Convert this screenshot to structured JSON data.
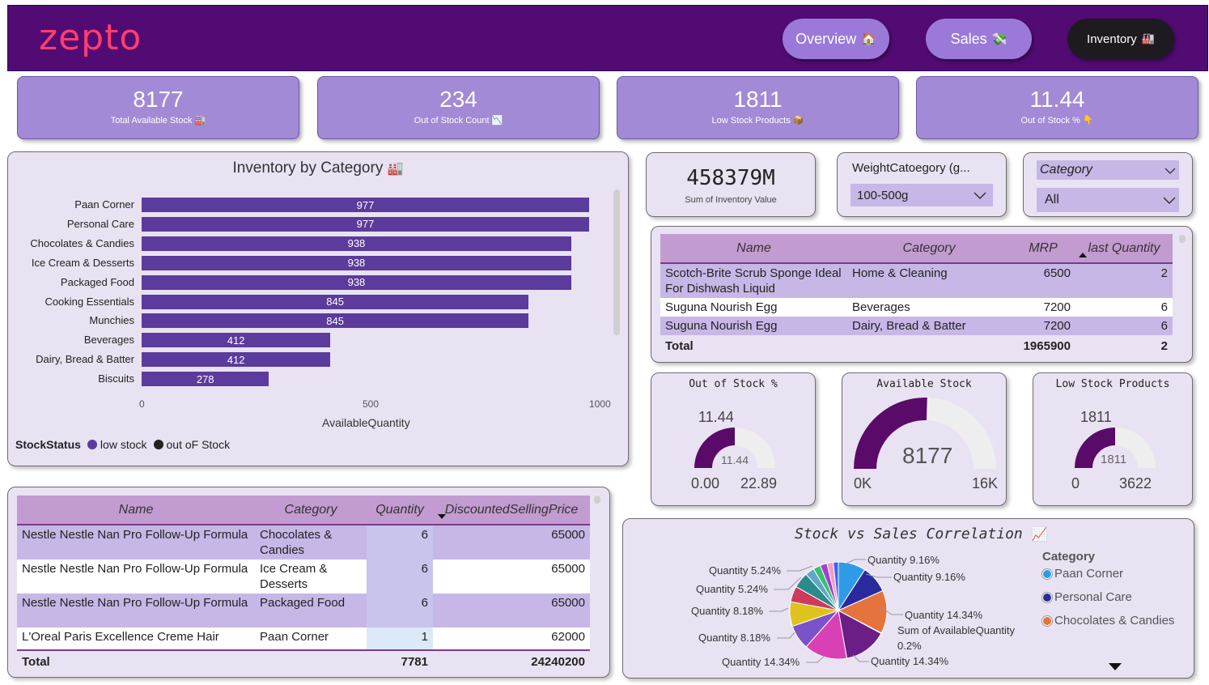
{
  "brand": "zepto",
  "nav": [
    {
      "label": "Overview",
      "icon": "🏠"
    },
    {
      "label": "Sales",
      "icon": "💸"
    },
    {
      "label": "Inventory",
      "icon": "🏭"
    }
  ],
  "kpis": [
    {
      "value": "8177",
      "label": "Total Available Stock",
      "icon": "🏭"
    },
    {
      "value": "234",
      "label": "Out of Stock Count",
      "icon": "📉"
    },
    {
      "value": "1811",
      "label": "Low Stock Products",
      "icon": "📦"
    },
    {
      "value": "11.44",
      "label": "Out of Stock %",
      "icon": "👇"
    }
  ],
  "inventory_chart": {
    "title": "Inventory by Category",
    "title_icon": "🏭",
    "xlabel": "AvailableQuantity",
    "legend_title": "StockStatus",
    "legend": [
      "low stock",
      "out oF Stock"
    ],
    "ticks": [
      "0",
      "500",
      "1000"
    ]
  },
  "chart_data": [
    {
      "type": "bar",
      "title": "Inventory by Category",
      "categories": [
        "Paan Corner",
        "Personal Care",
        "Chocolates & Candies",
        "Ice Cream & Desserts",
        "Packaged Food",
        "Cooking Essentials",
        "Munchies",
        "Beverages",
        "Dairy, Bread & Batter",
        "Biscuits"
      ],
      "values": [
        977,
        977,
        938,
        938,
        938,
        845,
        845,
        412,
        412,
        278
      ],
      "xlabel": "AvailableQuantity",
      "xlim": [
        0,
        1000
      ],
      "orientation": "horizontal",
      "colors": {
        "low stock": "#5b3b9b",
        "out oF Stock": "#222222"
      }
    },
    {
      "type": "pie",
      "title": "Stock vs Sales Correlation",
      "values": [
        9.16,
        9.16,
        14.34,
        0.2,
        14.34,
        14.34,
        8.18,
        8.18,
        5.24,
        5.24,
        3.0,
        2.5,
        2.3,
        2.1,
        1.7
      ],
      "labels": [
        "Quantity 9.16%",
        "Quantity 9.16%",
        "Quantity 14.34%",
        "Sum of AvailableQuantity 0.2%",
        "Quantity 14.34%",
        "Quantity 14.34%",
        "Quantity 8.18%",
        "Quantity 8.18%",
        "Quantity 5.24%",
        "Quantity 5.24%",
        "",
        "",
        "",
        "",
        ""
      ],
      "colors": [
        "#2f9be8",
        "#2a2a9e",
        "#e5733d",
        "#6b1f86",
        "#6b1f86",
        "#d940b5",
        "#7a52c9",
        "#e0c21f",
        "#ce3a5a",
        "#2b8a8a",
        "#5fa8c9",
        "#3cbf6b",
        "#a040d0",
        "#f0a0c0",
        "#4060ff"
      ]
    }
  ],
  "sum_inventory": {
    "value": "458379M",
    "label": "Sum of Inventory Value"
  },
  "filters": [
    {
      "label": "WeightCatoegory (g...",
      "value": "100-500g"
    },
    {
      "label": "Category",
      "value": "All"
    }
  ],
  "top_table": {
    "headers": [
      "Name",
      "Category",
      "MRP",
      "last Quantity"
    ],
    "rows": [
      [
        "Scotch-Brite Scrub Sponge Ideal For Dishwash Liquid",
        "Home & Cleaning",
        "6500",
        "2"
      ],
      [
        "Suguna Nourish Egg",
        "Beverages",
        "7200",
        "6"
      ],
      [
        "Suguna Nourish Egg",
        "Dairy, Bread & Batter",
        "7200",
        "6"
      ]
    ],
    "total": [
      "Total",
      "",
      "1965900",
      "2"
    ]
  },
  "gauges": [
    {
      "title": "Out of Stock %",
      "value": "11.44",
      "inner": "11.44",
      "min": "0.00",
      "max": "22.89",
      "fraction": 0.5
    },
    {
      "title": "Available Stock",
      "value": "8177",
      "min": "0K",
      "max": "16K",
      "fraction": 0.51
    },
    {
      "title": "Low Stock Products",
      "value": "1811",
      "inner": "1811",
      "min": "0",
      "max": "3622",
      "fraction": 0.5
    }
  ],
  "bottom_table": {
    "headers": [
      "Name",
      "Category",
      "Quantity",
      "DiscountedSellingPrice"
    ],
    "rows": [
      [
        "Nestle Nestle Nan Pro Follow-Up Formula",
        "Chocolates & Candies",
        "6",
        "65000"
      ],
      [
        "Nestle Nestle Nan Pro Follow-Up Formula",
        "Ice Cream & Desserts",
        "6",
        "65000"
      ],
      [
        "Nestle Nestle Nan Pro Follow-Up Formula",
        "Packaged Food",
        "6",
        "65000"
      ],
      [
        "L'Oreal Paris Excellence Creme Hair",
        "Paan Corner",
        "1",
        "62000"
      ]
    ],
    "total": [
      "Total",
      "",
      "7781",
      "24240200"
    ]
  },
  "pie_card": {
    "title": "Stock vs Sales Correlation",
    "title_icon": "📈",
    "legend_title": "Category",
    "legend": [
      {
        "label": "Paan Corner",
        "color": "#2f9be8"
      },
      {
        "label": "Personal Care",
        "color": "#2a2a9e"
      },
      {
        "label": "Chocolates & Candies",
        "color": "#e5733d"
      }
    ],
    "labels": {
      "l1": "Quantity 5.24%",
      "l2": "Quantity 5.24%",
      "l3": "Quantity 8.18%",
      "l4": "Quantity 8.18%",
      "l5": "Quantity 14.34%",
      "r1": "Quantity 9.16%",
      "r2": "Quantity 9.16%",
      "r3": "Quantity 14.34%",
      "r4a": "Sum of AvailableQuantity",
      "r4b": "0.2%",
      "r5": "Quantity 14.34%"
    }
  }
}
